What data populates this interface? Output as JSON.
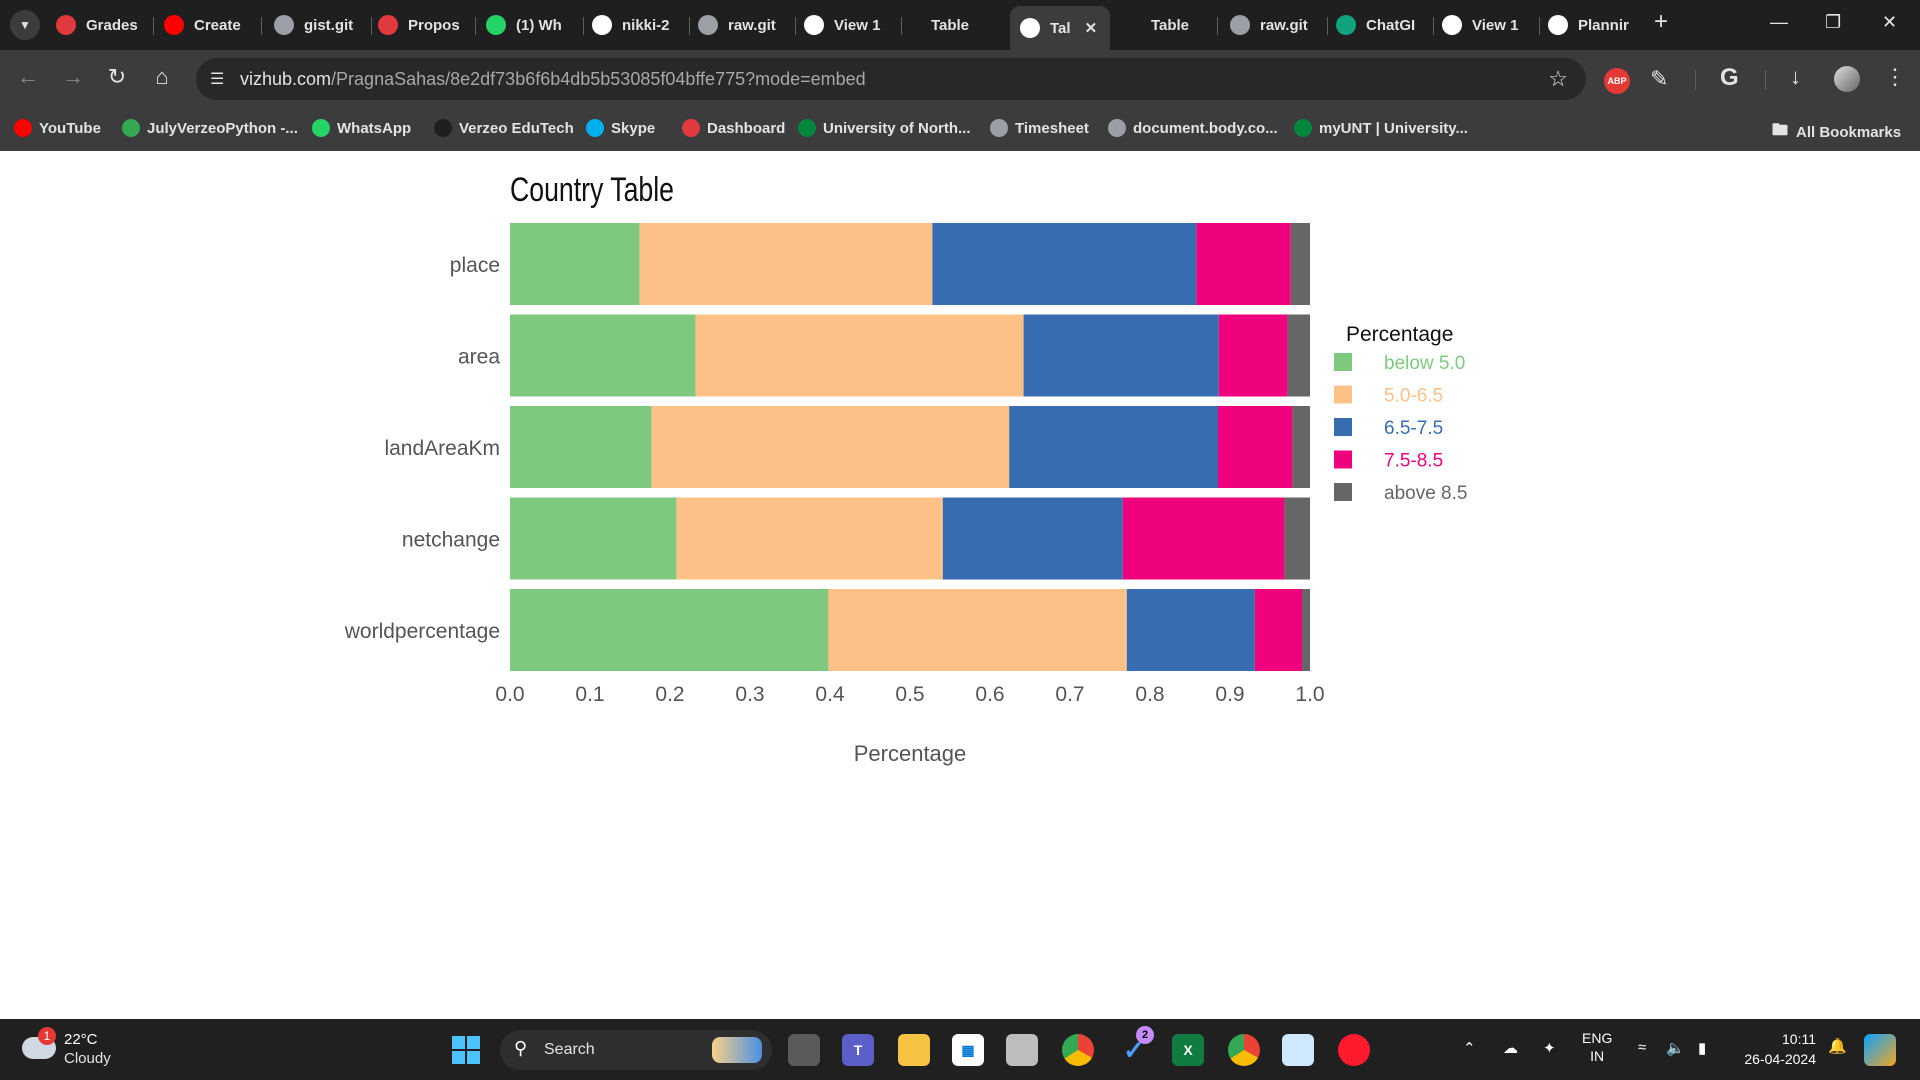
{
  "browser": {
    "tabs": [
      {
        "label": "Grades",
        "icon": "canvas-icon",
        "color": "#e03a3e"
      },
      {
        "label": "Create",
        "icon": "youtube-icon",
        "color": "#ff0000"
      },
      {
        "label": "gist.git",
        "icon": "globe-icon",
        "color": "#9aa0a6"
      },
      {
        "label": "Propos",
        "icon": "canvas-icon",
        "color": "#e03a3e"
      },
      {
        "label": "(1) Wh",
        "icon": "whatsapp-icon",
        "color": "#25d366"
      },
      {
        "label": "nikki-2",
        "icon": "github-icon",
        "color": "#ffffff"
      },
      {
        "label": "raw.git",
        "icon": "globe-icon",
        "color": "#9aa0a6"
      },
      {
        "label": "View 1",
        "icon": "github-icon",
        "color": "#ffffff"
      },
      {
        "label": "Table",
        "icon": "none",
        "color": "#1f1f1f"
      },
      {
        "label": "Tal",
        "icon": "notion-icon",
        "color": "#ffffff",
        "active": true
      },
      {
        "label": "Table",
        "icon": "none",
        "color": "#1f1f1f"
      },
      {
        "label": "raw.git",
        "icon": "globe-icon",
        "color": "#9aa0a6"
      },
      {
        "label": "ChatGI",
        "icon": "chatgpt-icon",
        "color": "#10a37f"
      },
      {
        "label": "View 1",
        "icon": "github-icon",
        "color": "#ffffff"
      },
      {
        "label": "Plannir",
        "icon": "github-icon",
        "color": "#ffffff"
      }
    ],
    "url_host": "vizhub.com",
    "url_path": "/PragnaSahas/8e2df73b6f6b4db5b53085f04bffe775?mode=embed",
    "bookmarks": [
      {
        "label": "YouTube",
        "color": "#ff0000"
      },
      {
        "label": "JulyVerzeoPython -...",
        "color": "#34a853"
      },
      {
        "label": "WhatsApp",
        "color": "#25d366"
      },
      {
        "label": "Verzeo EduTech",
        "color": "#1f1f1f"
      },
      {
        "label": "Skype",
        "color": "#00aff0"
      },
      {
        "label": "Dashboard",
        "color": "#e03a3e"
      },
      {
        "label": "University of North...",
        "color": "#00853e"
      },
      {
        "label": "Timesheet",
        "color": "#9aa0a6"
      },
      {
        "label": "document.body.co...",
        "color": "#9aa0a6"
      },
      {
        "label": "myUNT | University...",
        "color": "#00853e"
      }
    ],
    "all_bookmarks": "All Bookmarks",
    "abp_badge": "ABP"
  },
  "chart_data": {
    "type": "bar",
    "orientation": "horizontal-stacked",
    "title": "Country Table",
    "xlabel": "Percentage",
    "xlim": [
      0,
      1
    ],
    "xticks": [
      "0.0",
      "0.1",
      "0.2",
      "0.3",
      "0.4",
      "0.5",
      "0.6",
      "0.7",
      "0.8",
      "0.9",
      "1.0"
    ],
    "categories": [
      "place",
      "area",
      "landAreaKm",
      "netchange",
      "worldpercentage"
    ],
    "legend_title": "Percentage",
    "legend_position": "right",
    "series": [
      {
        "name": "below 5.0",
        "color": "#7fc97f",
        "values": [
          0.162,
          0.232,
          0.177,
          0.208,
          0.398
        ]
      },
      {
        "name": "5.0-6.5",
        "color": "#fdc086",
        "values": [
          0.366,
          0.41,
          0.447,
          0.333,
          0.373
        ]
      },
      {
        "name": "6.5-7.5",
        "color": "#386cb0",
        "values": [
          0.33,
          0.244,
          0.261,
          0.225,
          0.16
        ]
      },
      {
        "name": "7.5-8.5",
        "color": "#f0027f",
        "values": [
          0.118,
          0.086,
          0.093,
          0.202,
          0.059
        ]
      },
      {
        "name": "above 8.5",
        "color": "#666666",
        "values": [
          0.024,
          0.028,
          0.022,
          0.032,
          0.01
        ]
      }
    ]
  },
  "taskbar": {
    "weather_temp": "22°C",
    "weather_desc": "Cloudy",
    "weather_badge": "1",
    "search_label": "Search",
    "lang_top": "ENG",
    "lang_bottom": "IN",
    "time": "10:11",
    "date": "26-04-2024",
    "todo_badge": "2"
  }
}
